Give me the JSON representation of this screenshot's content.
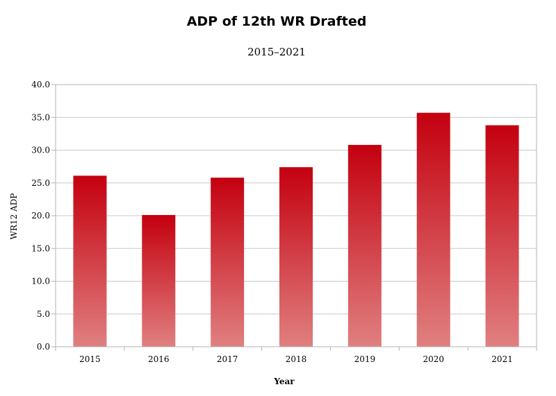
{
  "chart_data": {
    "type": "bar",
    "title": "ADP of 12th WR Drafted",
    "subtitle": "2015–2021",
    "xlabel": "Year",
    "ylabel": "WR12 ADP",
    "categories": [
      "2015",
      "2016",
      "2017",
      "2018",
      "2019",
      "2020",
      "2021"
    ],
    "values": [
      26.1,
      20.1,
      25.8,
      27.4,
      30.8,
      35.7,
      33.8
    ],
    "ylim": [
      0,
      40
    ],
    "yticks": [
      "0.0",
      "5.0",
      "10.0",
      "15.0",
      "20.0",
      "25.0",
      "30.0",
      "35.0",
      "40.0"
    ],
    "grid": true,
    "legend": "none",
    "colors": {
      "bar_top": "#c4000f",
      "bar_bottom": "#e08080",
      "grid": "#c8c8c8",
      "axis": "#b3b3b3"
    }
  }
}
